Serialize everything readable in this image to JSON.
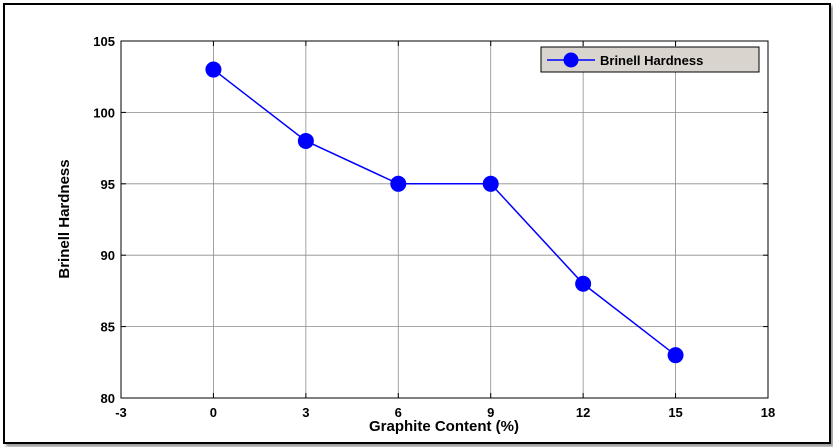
{
  "chart_data": {
    "type": "line",
    "xlabel": "Graphite Content (%)",
    "ylabel": "Brinell Hardness",
    "xlim": [
      -3,
      18
    ],
    "ylim": [
      80,
      105
    ],
    "xticks": [
      -3,
      0,
      3,
      6,
      9,
      12,
      15,
      18
    ],
    "yticks": [
      80,
      85,
      90,
      95,
      100,
      105
    ],
    "grid": true,
    "legend_position": "top-right",
    "x": [
      0,
      3,
      6,
      9,
      12,
      15
    ],
    "series": [
      {
        "name": "Brinell Hardness",
        "values": [
          103,
          98,
          95,
          95,
          88,
          83
        ],
        "color": "#0000ff",
        "marker": "circle"
      }
    ]
  }
}
